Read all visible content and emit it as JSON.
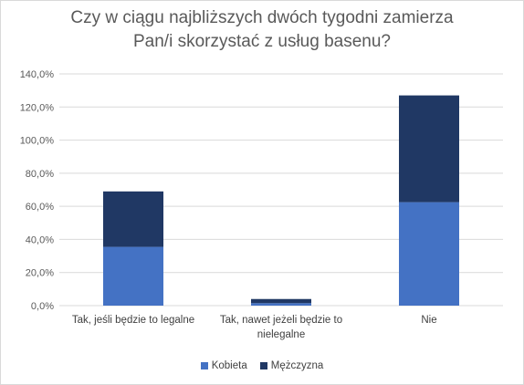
{
  "chart_data": {
    "type": "bar",
    "stacked": true,
    "title_lines": [
      "Czy w ciągu najbliższych dwóch tygodni zamierza",
      "Pan/i skorzystać z usług basenu?"
    ],
    "categories": [
      [
        "Tak, jeśli będzie to legalne"
      ],
      [
        "Tak, nawet jeżeli będzie to",
        "nielegalne"
      ],
      [
        "Nie"
      ]
    ],
    "series": [
      {
        "name": "Kobieta",
        "color": "#4472c4",
        "values": [
          35.5,
          1.5,
          62.5
        ]
      },
      {
        "name": "Mężczyzna",
        "color": "#203864",
        "values": [
          33.5,
          2.5,
          64.5
        ]
      }
    ],
    "ylim": [
      0,
      140
    ],
    "yticks": [
      0,
      20,
      40,
      60,
      80,
      100,
      120,
      140
    ],
    "ytick_labels": [
      "0,0%",
      "20,0%",
      "40,0%",
      "60,0%",
      "80,0%",
      "100,0%",
      "120,0%",
      "140,0%"
    ],
    "grid": true,
    "legend_position": "bottom"
  }
}
